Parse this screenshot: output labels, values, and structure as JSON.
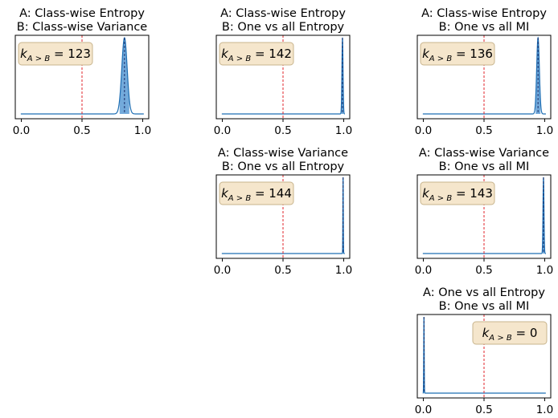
{
  "figure": {
    "k_symbol": "k",
    "k_subscript": "A > B",
    "k_equals": " = ",
    "colors": {
      "curve": "#1f6fb4",
      "fill": "#5b9bd5",
      "threshold_line": "#e0242b",
      "mean_line": "#1a2f6b",
      "box_fill": "#f5e6cc",
      "box_stroke": "#c8b48c"
    }
  },
  "chart_data": [
    {
      "type": "area",
      "title_line1": "A: Class-wise Entropy",
      "title_line2": "B: Class-wise Variance",
      "k_value": "123",
      "k_box": "top-left",
      "xlim": [
        -0.05,
        1.05
      ],
      "xticks": [
        "0.0",
        "0.5",
        "1.0"
      ],
      "threshold": 0.5,
      "mean": 0.85,
      "sd": 0.022,
      "ci": [
        0.81,
        0.89
      ]
    },
    {
      "type": "area",
      "title_line1": "A: Class-wise Entropy",
      "title_line2": "B: One vs all Entropy",
      "k_value": "142",
      "k_box": "top-left",
      "xlim": [
        -0.05,
        1.05
      ],
      "xticks": [
        "0.0",
        "0.5",
        "1.0"
      ],
      "threshold": 0.5,
      "mean": 0.99,
      "sd": 0.0045,
      "ci": [
        0.981,
        0.999
      ]
    },
    {
      "type": "area",
      "title_line1": "A: Class-wise Entropy",
      "title_line2": "B: One vs all MI",
      "k_value": "136",
      "k_box": "top-left",
      "xlim": [
        -0.05,
        1.05
      ],
      "xticks": [
        "0.0",
        "0.5",
        "1.0"
      ],
      "threshold": 0.5,
      "mean": 0.945,
      "sd": 0.011,
      "ci": [
        0.925,
        0.965
      ]
    },
    {
      "type": "area",
      "title_line1": "A: Class-wise Variance",
      "title_line2": "B: One vs all Entropy",
      "k_value": "144",
      "k_box": "top-left",
      "xlim": [
        -0.05,
        1.05
      ],
      "xticks": [
        "0.0",
        "0.5",
        "1.0"
      ],
      "threshold": 0.5,
      "mean": 0.995,
      "sd": 0.0018,
      "ci": [
        0.991,
        0.999
      ]
    },
    {
      "type": "area",
      "title_line1": "A: Class-wise Variance",
      "title_line2": "B: One vs all MI",
      "k_value": "143",
      "k_box": "top-left",
      "xlim": [
        -0.05,
        1.05
      ],
      "xticks": [
        "0.0",
        "0.5",
        "1.0"
      ],
      "threshold": 0.5,
      "mean": 0.99,
      "sd": 0.004,
      "ci": [
        0.982,
        0.998
      ]
    },
    {
      "type": "area",
      "title_line1": "A: One vs all Entropy",
      "title_line2": "B: One vs all MI",
      "k_value": "0",
      "k_box": "top-right",
      "xlim": [
        -0.05,
        1.05
      ],
      "xticks": [
        "0.0",
        "0.5",
        "1.0"
      ],
      "threshold": 0.5,
      "mean": 0.005,
      "sd": 0.002,
      "ci": [
        0.001,
        0.009
      ]
    }
  ]
}
